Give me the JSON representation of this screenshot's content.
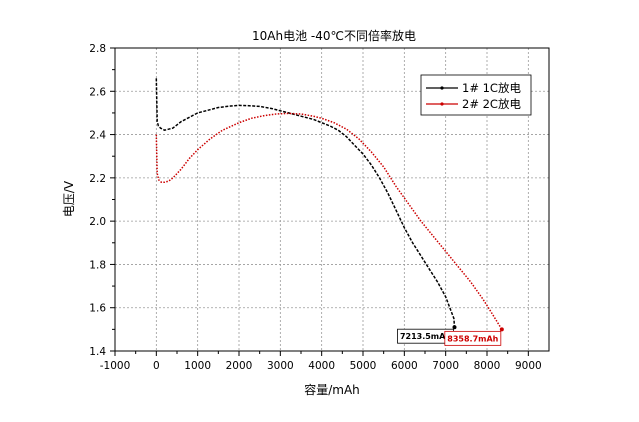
{
  "chart_data": {
    "type": "line",
    "title": "10Ah电池 -40℃不同倍率放电",
    "xlabel": "容量/mAh",
    "ylabel": "电压/V",
    "xlim": [
      -1000,
      9500
    ],
    "ylim": [
      1.4,
      2.8
    ],
    "xticks": [
      -1000,
      0,
      1000,
      2000,
      3000,
      4000,
      5000,
      6000,
      7000,
      8000,
      9000
    ],
    "yticks": [
      1.4,
      1.6,
      1.8,
      2.0,
      2.2,
      2.4,
      2.6,
      2.8
    ],
    "xtick_labels": [
      "-1000",
      "0",
      "1000",
      "2000",
      "3000",
      "4000",
      "5000",
      "6000",
      "7000",
      "8000",
      "9000"
    ],
    "ytick_labels": [
      "1.4",
      "1.6",
      "1.8",
      "2.0",
      "2.2",
      "2.4",
      "2.6",
      "2.8"
    ],
    "grid": true,
    "legend_position": "top-right",
    "series": [
      {
        "name": "1# 1C放电",
        "color": "#000000",
        "x": [
          0,
          20,
          50,
          100,
          200,
          400,
          600,
          800,
          1000,
          1200,
          1500,
          1800,
          2000,
          2200,
          2500,
          2800,
          3000,
          3200,
          3500,
          3800,
          4000,
          4200,
          4400,
          4600,
          4800,
          5000,
          5200,
          5400,
          5600,
          5800,
          6000,
          6200,
          6400,
          6600,
          6800,
          7000,
          7100,
          7200,
          7213.5
        ],
        "y": [
          2.66,
          2.46,
          2.44,
          2.43,
          2.42,
          2.43,
          2.46,
          2.48,
          2.5,
          2.51,
          2.525,
          2.532,
          2.535,
          2.534,
          2.53,
          2.52,
          2.51,
          2.5,
          2.485,
          2.47,
          2.455,
          2.44,
          2.42,
          2.39,
          2.35,
          2.31,
          2.26,
          2.2,
          2.13,
          2.05,
          1.97,
          1.9,
          1.84,
          1.78,
          1.72,
          1.65,
          1.6,
          1.55,
          1.51
        ]
      },
      {
        "name": "2# 2C放电",
        "color": "#cc0000",
        "x": [
          0,
          20,
          60,
          120,
          200,
          300,
          400,
          600,
          800,
          1000,
          1300,
          1600,
          2000,
          2300,
          2600,
          2900,
          3200,
          3500,
          3800,
          4000,
          4300,
          4600,
          4900,
          5200,
          5500,
          5800,
          6100,
          6400,
          6700,
          7000,
          7300,
          7600,
          7900,
          8100,
          8358.7
        ],
        "y": [
          2.4,
          2.22,
          2.19,
          2.18,
          2.18,
          2.185,
          2.2,
          2.24,
          2.29,
          2.33,
          2.38,
          2.42,
          2.455,
          2.475,
          2.487,
          2.495,
          2.498,
          2.495,
          2.485,
          2.475,
          2.455,
          2.425,
          2.38,
          2.32,
          2.25,
          2.16,
          2.08,
          2.0,
          1.93,
          1.86,
          1.79,
          1.72,
          1.64,
          1.58,
          1.5
        ]
      }
    ],
    "annotations": [
      {
        "text": "7213.5mAh",
        "x": 7213.5,
        "y": 1.51,
        "color": "#000000"
      },
      {
        "text": "8358.7mAh",
        "x": 8358.7,
        "y": 1.5,
        "color": "#cc0000"
      }
    ]
  }
}
